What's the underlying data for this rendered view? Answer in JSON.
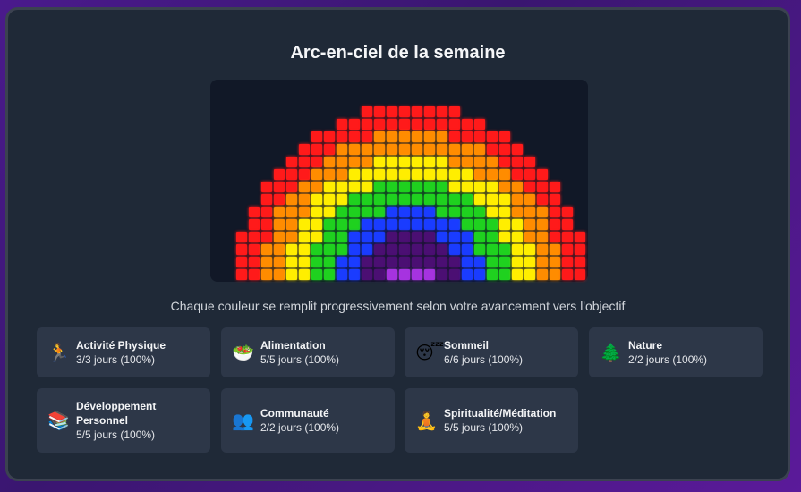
{
  "title": "Arc-en-ciel de la semaine",
  "subtitle": "Chaque couleur se remplit progressivement selon votre avancement vers l'objectif",
  "colors": {
    "red": "#ff1a1a",
    "orange": "#ff8c00",
    "yellow": "#ffee00",
    "green": "#1fd11f",
    "blue": "#1a3cff",
    "violet_dark": "#4b0f73",
    "violet_light": "#a633e0"
  },
  "categories": [
    {
      "icon": "🏃",
      "icon_name": "running-icon",
      "name": "Activité Physique",
      "value": "3/3 jours (100%)"
    },
    {
      "icon": "🥗",
      "icon_name": "salad-icon",
      "name": "Alimentation",
      "value": "5/5 jours (100%)"
    },
    {
      "icon": "😴",
      "icon_name": "sleeping-face-icon",
      "name": "Sommeil",
      "value": "6/6 jours (100%)"
    },
    {
      "icon": "🌲",
      "icon_name": "tree-icon",
      "name": "Nature",
      "value": "2/2 jours (100%)"
    },
    {
      "icon": "📚",
      "icon_name": "books-icon",
      "name": "Développement Personnel",
      "value": "5/5 jours (100%)"
    },
    {
      "icon": "👥",
      "icon_name": "people-icon",
      "name": "Communauté",
      "value": "2/2 jours (100%)"
    },
    {
      "icon": "🧘",
      "icon_name": "meditation-icon",
      "name": "Spiritualité/Méditation",
      "value": "5/5 jours (100%)"
    }
  ]
}
